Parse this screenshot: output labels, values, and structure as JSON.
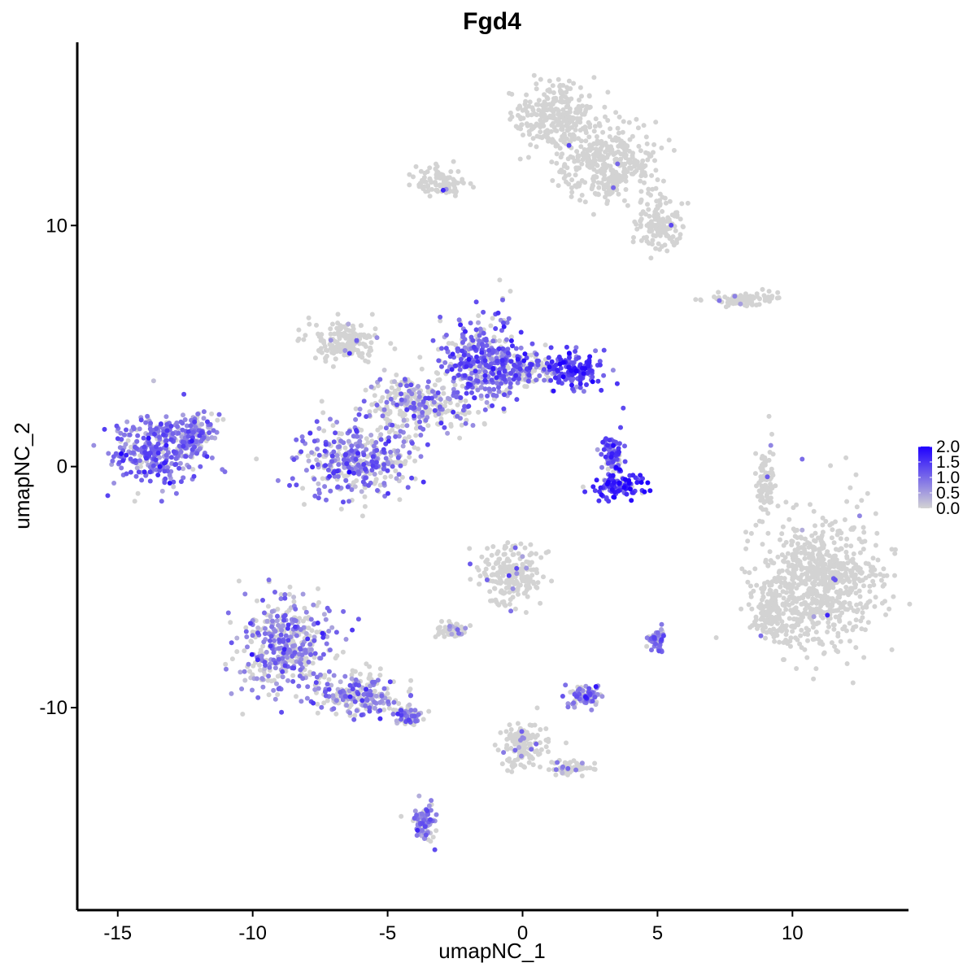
{
  "chart_data": {
    "type": "scatter",
    "title": "Fgd4",
    "xlabel": "umapNC_1",
    "ylabel": "umapNC_2",
    "xlim": [
      -16.5,
      14.3
    ],
    "ylim": [
      -18.4,
      17.6
    ],
    "x_ticks": [
      -15,
      -10,
      -5,
      0,
      5,
      10
    ],
    "x_tick_labels": [
      "-15",
      "-10",
      "-5",
      "0",
      "5",
      "10"
    ],
    "y_ticks": [
      -10,
      0,
      10
    ],
    "y_tick_labels": [
      "-10",
      "0",
      "10"
    ],
    "grid": false,
    "legend": {
      "placement": "right",
      "min": 0.0,
      "max": 2.0,
      "ticks": [
        0.0,
        0.5,
        1.0,
        1.5,
        2.0
      ],
      "tick_labels": [
        "0.0",
        "0.5",
        "1.0",
        "1.5",
        "2.0"
      ],
      "color_low": "#d3d3d3",
      "color_high": "#1f00ff"
    },
    "point_color_nonexpressing": "#d3d3d3",
    "clusters": [
      {
        "cx": -13.5,
        "cy": 0.7,
        "sx": 1.1,
        "sy": 1.0,
        "expr_frac": 0.85,
        "expr_mean": 0.9
      },
      {
        "cx": -12.0,
        "cy": 1.4,
        "sx": 0.5,
        "sy": 0.5,
        "expr_frac": 0.75,
        "expr_mean": 0.8
      },
      {
        "cx": -6.2,
        "cy": 0.2,
        "sx": 1.3,
        "sy": 1.0,
        "expr_frac": 0.65,
        "expr_mean": 0.9
      },
      {
        "cx": -4.0,
        "cy": 2.5,
        "sx": 1.2,
        "sy": 0.8,
        "expr_frac": 0.35,
        "expr_mean": 0.8
      },
      {
        "cx": -6.5,
        "cy": 5.2,
        "sx": 0.9,
        "sy": 0.6,
        "expr_frac": 0.04,
        "expr_mean": 0.7
      },
      {
        "cx": -1.5,
        "cy": 4.3,
        "sx": 1.0,
        "sy": 1.2,
        "expr_frac": 0.7,
        "expr_mean": 1.0
      },
      {
        "cx": 0.0,
        "cy": 4.0,
        "sx": 1.0,
        "sy": 0.5,
        "expr_frac": 0.6,
        "expr_mean": 1.0
      },
      {
        "cx": 2.0,
        "cy": 4.0,
        "sx": 0.7,
        "sy": 0.55,
        "expr_frac": 0.95,
        "expr_mean": 1.4
      },
      {
        "cx": 3.5,
        "cy": -0.8,
        "sx": 0.6,
        "sy": 0.35,
        "expr_frac": 0.95,
        "expr_mean": 1.5
      },
      {
        "cx": 3.3,
        "cy": 0.5,
        "sx": 0.3,
        "sy": 0.6,
        "expr_frac": 0.8,
        "expr_mean": 1.2
      },
      {
        "cx": 1.2,
        "cy": 14.5,
        "sx": 1.0,
        "sy": 0.9,
        "expr_frac": 0.01,
        "expr_mean": 0.8
      },
      {
        "cx": 3.2,
        "cy": 12.5,
        "sx": 1.2,
        "sy": 1.0,
        "expr_frac": 0.01,
        "expr_mean": 0.8
      },
      {
        "cx": 5.0,
        "cy": 10.0,
        "sx": 0.6,
        "sy": 0.6,
        "expr_frac": 0.02,
        "expr_mean": 0.8
      },
      {
        "cx": -3.0,
        "cy": 11.8,
        "sx": 0.6,
        "sy": 0.4,
        "expr_frac": 0.02,
        "expr_mean": 0.8
      },
      {
        "cx": 11.0,
        "cy": -4.8,
        "sx": 1.5,
        "sy": 1.8,
        "expr_frac": 0.01,
        "expr_mean": 0.8
      },
      {
        "cx": 9.2,
        "cy": -6.0,
        "sx": 0.4,
        "sy": 0.7,
        "expr_frac": 0.01,
        "expr_mean": 0.8
      },
      {
        "cx": -8.8,
        "cy": -7.5,
        "sx": 1.1,
        "sy": 1.3,
        "expr_frac": 0.6,
        "expr_mean": 0.8
      },
      {
        "cx": -6.0,
        "cy": -9.5,
        "sx": 1.0,
        "sy": 0.6,
        "expr_frac": 0.45,
        "expr_mean": 0.8
      },
      {
        "cx": -4.2,
        "cy": -10.3,
        "sx": 0.4,
        "sy": 0.3,
        "expr_frac": 0.6,
        "expr_mean": 0.8
      },
      {
        "cx": -3.6,
        "cy": -14.8,
        "sx": 0.25,
        "sy": 0.5,
        "expr_frac": 0.7,
        "expr_mean": 0.8
      },
      {
        "cx": -0.5,
        "cy": -4.5,
        "sx": 0.8,
        "sy": 0.8,
        "expr_frac": 0.05,
        "expr_mean": 0.8
      },
      {
        "cx": -2.6,
        "cy": -6.8,
        "sx": 0.35,
        "sy": 0.2,
        "expr_frac": 0.15,
        "expr_mean": 0.8
      },
      {
        "cx": 2.3,
        "cy": -9.5,
        "sx": 0.5,
        "sy": 0.3,
        "expr_frac": 0.7,
        "expr_mean": 0.8
      },
      {
        "cx": 8.2,
        "cy": 6.9,
        "sx": 0.9,
        "sy": 0.2,
        "expr_frac": 0.02,
        "expr_mean": 0.8
      },
      {
        "cx": 9.0,
        "cy": -0.5,
        "sx": 0.2,
        "sy": 0.9,
        "expr_frac": 0.02,
        "expr_mean": 0.8
      },
      {
        "cx": 5.0,
        "cy": -7.2,
        "sx": 0.2,
        "sy": 0.3,
        "expr_frac": 0.8,
        "expr_mean": 0.8
      },
      {
        "cx": 0.0,
        "cy": -11.5,
        "sx": 0.6,
        "sy": 0.6,
        "expr_frac": 0.1,
        "expr_mean": 0.8
      },
      {
        "cx": 1.8,
        "cy": -12.5,
        "sx": 0.5,
        "sy": 0.2,
        "expr_frac": 0.1,
        "expr_mean": 0.8
      }
    ]
  }
}
